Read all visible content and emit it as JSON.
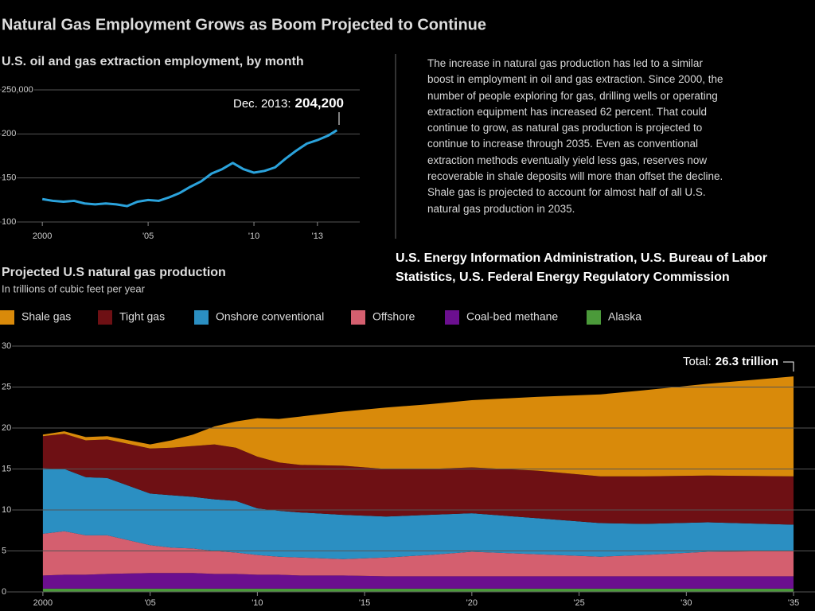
{
  "title": "Natural Gas Employment Grows as Boom Projected to Continue",
  "description": "The increase in natural gas production has led to a similar boost in employment in oil and gas extraction. Since 2000, the number of people exploring for gas, drilling wells or operating extraction equipment has increased 62 percent. That could continue to grow, as natural gas production is projected to continue to increase through 2035. Even as conventional extraction methods eventually yield less gas, reserves now recoverable in shale deposits will more than offset the decline. Shale gas is projected to account for almost half of all U.S. natural gas production in 2035.",
  "source": "U.S. Energy Information Administration, U.S. Bureau of Labor Statistics, U.S. Federal Energy Regulatory Commission",
  "chart_data": [
    {
      "type": "line",
      "title": "U.S. oil and gas extraction employment, by month",
      "annotation": {
        "label": "Dec. 2013:",
        "value": "204,200"
      },
      "x": [
        2000,
        2000.5,
        2001,
        2001.5,
        2002,
        2002.5,
        2003,
        2003.5,
        2004,
        2004.5,
        2005,
        2005.5,
        2006,
        2006.5,
        2007,
        2007.5,
        2008,
        2008.5,
        2009,
        2009.5,
        2010,
        2010.5,
        2011,
        2011.5,
        2012,
        2012.5,
        2013,
        2013.5,
        2013.92
      ],
      "series": [
        {
          "color": "#2ba3dc",
          "values": [
            126,
            124,
            123,
            124,
            121,
            120,
            121,
            120,
            118,
            123,
            125,
            124,
            128,
            133,
            140,
            146,
            155,
            160,
            167,
            160,
            156,
            158,
            162,
            172,
            181,
            189,
            193,
            198,
            204.2
          ]
        }
      ],
      "xlim": [
        1998,
        2015
      ],
      "xticks": [
        2000,
        {
          "value": 2005,
          "label": "'05"
        },
        {
          "value": 2010,
          "label": "'10"
        },
        {
          "value": 2013,
          "label": "'13"
        }
      ],
      "ylim": [
        100,
        250
      ],
      "yticks": [
        {
          "value": 250,
          "label": "250,000"
        },
        200,
        150,
        100
      ],
      "grid": true
    },
    {
      "type": "area",
      "stacked": true,
      "title": "Projected U.S natural gas production",
      "subtitle": "In trillions of cubic feet per year",
      "annotation": {
        "label": "Total:",
        "value": "26.3 trillion"
      },
      "x": [
        2000,
        2001,
        2002,
        2003,
        2005,
        2006,
        2007,
        2008,
        2009,
        2010,
        2011,
        2012,
        2014,
        2016,
        2018,
        2020,
        2023,
        2026,
        2028,
        2031,
        2035
      ],
      "series": [
        {
          "name": "Shale gas",
          "color": "#d98a0a",
          "values": [
            0.2,
            0.3,
            0.4,
            0.4,
            0.5,
            0.9,
            1.4,
            2.2,
            3.2,
            4.7,
            5.3,
            5.9,
            6.6,
            7.5,
            7.9,
            8.2,
            9.0,
            10.0,
            10.5,
            11.2,
            12.2
          ]
        },
        {
          "name": "Tight gas",
          "color": "#6e1014",
          "values": [
            3.9,
            4.3,
            4.5,
            4.7,
            5.5,
            5.8,
            6.2,
            6.7,
            6.5,
            6.3,
            5.9,
            5.8,
            6.0,
            5.8,
            5.6,
            5.6,
            5.8,
            5.7,
            5.8,
            5.7,
            5.9
          ]
        },
        {
          "name": "Onshore conventional",
          "color": "#2b8fc2",
          "values": [
            8.0,
            7.6,
            7.1,
            7.0,
            6.3,
            6.4,
            6.3,
            6.3,
            6.3,
            5.7,
            5.6,
            5.5,
            5.4,
            5.0,
            4.9,
            4.7,
            4.4,
            4.1,
            3.8,
            3.6,
            3.2
          ]
        },
        {
          "name": "Offshore",
          "color": "#d45f6f",
          "values": [
            5.1,
            5.3,
            4.8,
            4.7,
            3.4,
            3.1,
            3.0,
            2.8,
            2.6,
            2.4,
            2.2,
            2.2,
            2.0,
            2.3,
            2.6,
            3.0,
            2.7,
            2.4,
            2.6,
            3.0,
            3.1
          ]
        },
        {
          "name": "Coal-bed methane",
          "color": "#6b0f8f",
          "values": [
            1.6,
            1.7,
            1.7,
            1.8,
            1.9,
            1.9,
            1.9,
            1.8,
            1.8,
            1.7,
            1.7,
            1.6,
            1.6,
            1.5,
            1.5,
            1.5,
            1.5,
            1.5,
            1.5,
            1.5,
            1.5
          ]
        },
        {
          "name": "Alaska",
          "color": "#4b9a3a",
          "values": [
            0.4,
            0.4,
            0.4,
            0.4,
            0.4,
            0.4,
            0.4,
            0.4,
            0.4,
            0.4,
            0.4,
            0.4,
            0.4,
            0.4,
            0.4,
            0.4,
            0.4,
            0.4,
            0.4,
            0.4,
            0.4
          ]
        }
      ],
      "xlim": [
        1998,
        2036
      ],
      "xticks": [
        2000,
        {
          "value": 2005,
          "label": "'05"
        },
        {
          "value": 2010,
          "label": "'10"
        },
        {
          "value": 2015,
          "label": "'15"
        },
        {
          "value": 2020,
          "label": "'20"
        },
        {
          "value": 2025,
          "label": "'25"
        },
        {
          "value": 2030,
          "label": "'30"
        },
        {
          "value": 2035,
          "label": "'35"
        }
      ],
      "ylim": [
        0,
        30
      ],
      "yticks": [
        0,
        5,
        10,
        15,
        20,
        25,
        30
      ],
      "grid": true,
      "legend": "top-left"
    }
  ]
}
